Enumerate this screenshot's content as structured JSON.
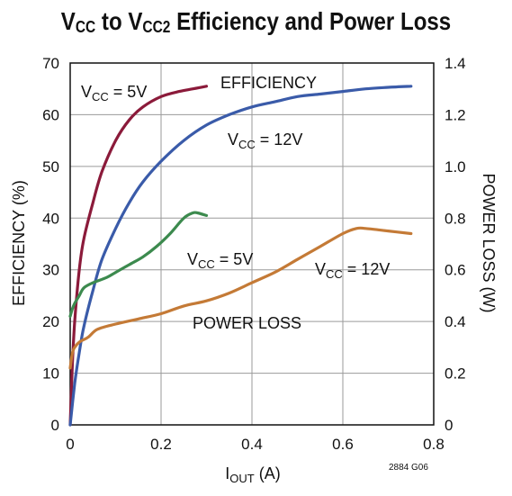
{
  "chart_data": {
    "type": "line",
    "title": {
      "v1": "V",
      "s1": "CC",
      "mid": " to V",
      "s2": "CC2",
      "rest": " Efficiency and Power Loss"
    },
    "xlabel": {
      "main": "I",
      "sub": "OUT",
      "unit": " (A)"
    },
    "ylabel_left": "EFFICIENCY (%)",
    "ylabel_right": "POWER LOSS (W)",
    "xlim": [
      0,
      0.8
    ],
    "ylim_left": [
      0,
      70
    ],
    "ylim_right": [
      0,
      1.4
    ],
    "x_ticks": [
      "0",
      "0.2",
      "0.4",
      "0.6",
      "0.8"
    ],
    "y_ticks_left": [
      "0",
      "10",
      "20",
      "30",
      "40",
      "50",
      "60",
      "70"
    ],
    "y_ticks_right": [
      "0",
      "0.2",
      "0.4",
      "0.6",
      "0.8",
      "1.0",
      "1.2",
      "1.4"
    ],
    "grid": true,
    "note": "2884 G06",
    "annotations": [
      {
        "id": "efficiency",
        "text": "EFFICIENCY"
      },
      {
        "id": "power-loss",
        "text": "POWER LOSS"
      }
    ],
    "series": [
      {
        "id": "eff-5v",
        "label": "V",
        "label_sub": "CC",
        "label_rest": " = 5V",
        "axis": "left",
        "color": "#8b1a3a",
        "x": [
          0,
          0.005,
          0.01,
          0.02,
          0.03,
          0.05,
          0.07,
          0.1,
          0.13,
          0.16,
          0.2,
          0.24,
          0.27,
          0.3
        ],
        "y": [
          0,
          12,
          20,
          30,
          36,
          43,
          49,
          55,
          59,
          61.5,
          63.5,
          64.5,
          65,
          65.5
        ]
      },
      {
        "id": "eff-12v",
        "label": "V",
        "label_sub": "CC",
        "label_rest": " = 12V",
        "axis": "left",
        "color": "#3a5ba9",
        "x": [
          0,
          0.01,
          0.02,
          0.03,
          0.05,
          0.07,
          0.1,
          0.13,
          0.16,
          0.2,
          0.25,
          0.3,
          0.35,
          0.4,
          0.45,
          0.5,
          0.55,
          0.6,
          0.65,
          0.7,
          0.75
        ],
        "y": [
          0,
          8,
          14,
          19,
          26,
          32,
          38,
          43,
          47,
          51,
          55,
          58,
          60,
          61.5,
          62.5,
          63.5,
          64,
          64.5,
          65,
          65.3,
          65.5
        ]
      },
      {
        "id": "loss-5v",
        "label": "V",
        "label_sub": "CC",
        "label_rest": " = 5V",
        "axis": "right",
        "color": "#3c8a4e",
        "x": [
          0,
          0.005,
          0.01,
          0.02,
          0.03,
          0.05,
          0.08,
          0.1,
          0.13,
          0.16,
          0.19,
          0.22,
          0.25,
          0.27,
          0.28,
          0.3
        ],
        "y": [
          0.42,
          0.45,
          0.47,
          0.5,
          0.53,
          0.55,
          0.57,
          0.59,
          0.62,
          0.65,
          0.69,
          0.74,
          0.8,
          0.82,
          0.82,
          0.81
        ]
      },
      {
        "id": "loss-12v",
        "label": "V",
        "label_sub": "CC",
        "label_rest": " = 12V",
        "axis": "right",
        "color": "#c47a36",
        "x": [
          0,
          0.005,
          0.01,
          0.02,
          0.04,
          0.06,
          0.1,
          0.15,
          0.2,
          0.25,
          0.3,
          0.35,
          0.4,
          0.45,
          0.5,
          0.55,
          0.6,
          0.63,
          0.65,
          0.7,
          0.75
        ],
        "y": [
          0.22,
          0.28,
          0.3,
          0.32,
          0.34,
          0.37,
          0.39,
          0.41,
          0.43,
          0.46,
          0.48,
          0.51,
          0.55,
          0.59,
          0.64,
          0.69,
          0.74,
          0.76,
          0.76,
          0.75,
          0.74
        ]
      }
    ]
  }
}
